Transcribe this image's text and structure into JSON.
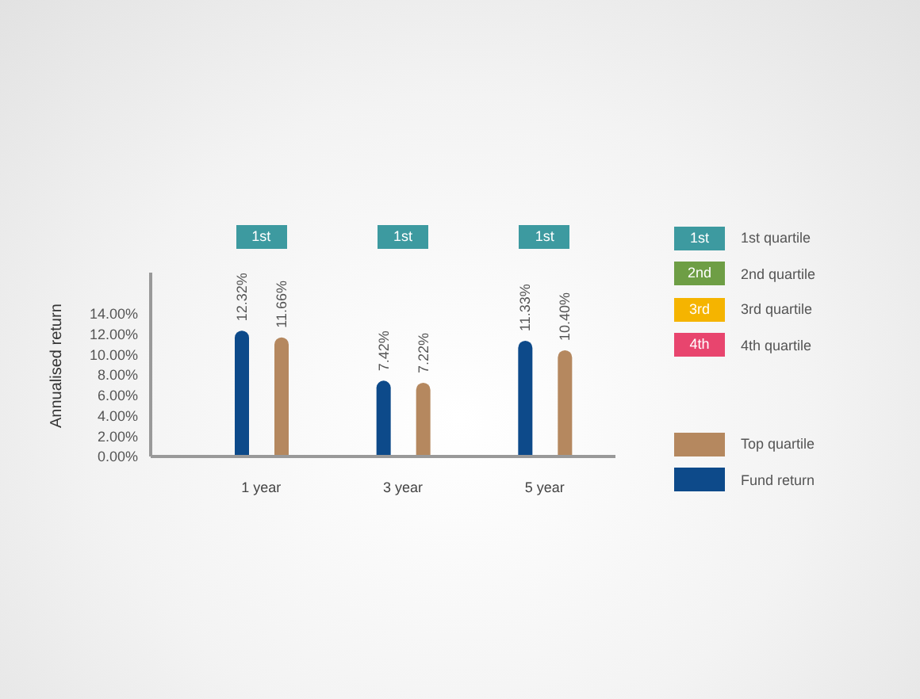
{
  "chart_data": {
    "type": "bar",
    "ylabel": "Annualised return",
    "categories": [
      "1 year",
      "3 year",
      "5 year"
    ],
    "series": [
      {
        "name": "Fund return",
        "color": "#0d4a8a",
        "values": [
          12.32,
          7.42,
          11.33
        ],
        "value_labels": [
          "12.32%",
          "7.42%",
          "11.33%"
        ]
      },
      {
        "name": "Top quartile",
        "color": "#b5885f",
        "values": [
          11.66,
          7.22,
          10.4
        ],
        "value_labels": [
          "11.66%",
          "7.22%",
          "10.40%"
        ]
      },
      {
        "name": "1st quartile",
        "color": "#3d9aa0",
        "values": [
          null,
          null,
          null
        ]
      },
      {
        "name": "2nd quartile",
        "color": "#6e9e45",
        "values": [
          null,
          null,
          null
        ]
      },
      {
        "name": "3rd quartile",
        "color": "#f5b400",
        "values": [
          null,
          null,
          null
        ]
      },
      {
        "name": "4th quartile",
        "color": "#e8456e",
        "values": [
          null,
          null,
          null
        ]
      }
    ],
    "annotations": [
      "1st",
      "1st",
      "1st",
      "1st",
      "2nd",
      "3rd",
      "4th"
    ],
    "ylim": [
      0,
      18
    ],
    "yticks": [
      {
        "value": 0,
        "label": "0.00%"
      },
      {
        "value": 2,
        "label": "2.00%"
      },
      {
        "value": 4,
        "label": "4.00%"
      },
      {
        "value": 6,
        "label": "6.00%"
      },
      {
        "value": 8,
        "label": "8.00%"
      },
      {
        "value": 10,
        "label": "10.00%"
      },
      {
        "value": 12,
        "label": "12.00%"
      },
      {
        "value": 14,
        "label": "14.00%"
      }
    ],
    "grid": false,
    "legend": "right"
  }
}
